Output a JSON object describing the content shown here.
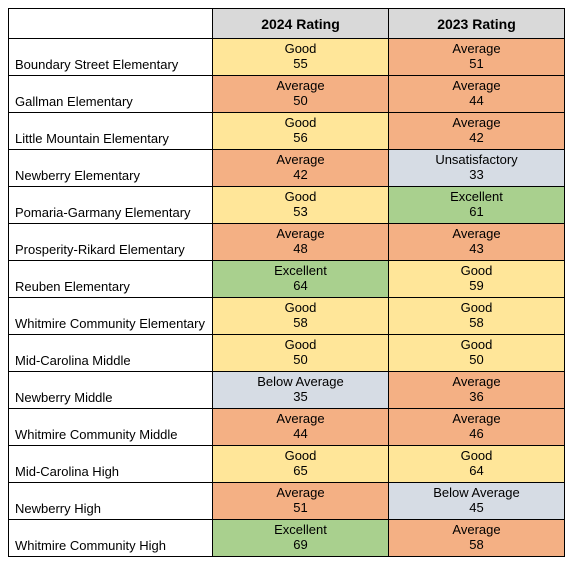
{
  "colors": {
    "header_bg": "#d9d9d9",
    "white": "#ffffff",
    "border": "#000000",
    "Excellent": "#a9d08e",
    "Good": "#ffe699",
    "Average": "#f4b084",
    "Below Average": "#d6dce4",
    "Unsatisfactory": "#d6dce4"
  },
  "headers": {
    "col2024": "2024 Rating",
    "col2023": "2023 Rating"
  },
  "rows": [
    {
      "school": "Boundary Street Elementary",
      "r2024": {
        "label": "Good",
        "score": 55
      },
      "r2023": {
        "label": "Average",
        "score": 51
      }
    },
    {
      "school": "Gallman Elementary",
      "r2024": {
        "label": "Average",
        "score": 50
      },
      "r2023": {
        "label": "Average",
        "score": 44
      }
    },
    {
      "school": "Little Mountain Elementary",
      "r2024": {
        "label": "Good",
        "score": 56
      },
      "r2023": {
        "label": "Average",
        "score": 42
      }
    },
    {
      "school": "Newberry Elementary",
      "r2024": {
        "label": "Average",
        "score": 42
      },
      "r2023": {
        "label": "Unsatisfactory",
        "score": 33
      }
    },
    {
      "school": "Pomaria-Garmany Elementary",
      "r2024": {
        "label": "Good",
        "score": 53
      },
      "r2023": {
        "label": "Excellent",
        "score": 61
      }
    },
    {
      "school": "Prosperity-Rikard Elementary",
      "r2024": {
        "label": "Average",
        "score": 48
      },
      "r2023": {
        "label": "Average",
        "score": 43
      }
    },
    {
      "school": "Reuben Elementary",
      "r2024": {
        "label": "Excellent",
        "score": 64
      },
      "r2023": {
        "label": "Good",
        "score": 59
      }
    },
    {
      "school": "Whitmire Community Elementary",
      "r2024": {
        "label": "Good",
        "score": 58
      },
      "r2023": {
        "label": "Good",
        "score": 58
      }
    },
    {
      "school": "Mid-Carolina Middle",
      "r2024": {
        "label": "Good",
        "score": 50
      },
      "r2023": {
        "label": "Good",
        "score": 50
      }
    },
    {
      "school": "Newberry Middle",
      "r2024": {
        "label": "Below Average",
        "score": 35
      },
      "r2023": {
        "label": "Average",
        "score": 36
      }
    },
    {
      "school": "Whitmire Community Middle",
      "r2024": {
        "label": "Average",
        "score": 44
      },
      "r2023": {
        "label": "Average",
        "score": 46
      }
    },
    {
      "school": "Mid-Carolina High",
      "r2024": {
        "label": "Good",
        "score": 65
      },
      "r2023": {
        "label": "Good",
        "score": 64
      }
    },
    {
      "school": "Newberry High",
      "r2024": {
        "label": "Average",
        "score": 51
      },
      "r2023": {
        "label": "Below Average",
        "score": 45
      }
    },
    {
      "school": "Whitmire Community High",
      "r2024": {
        "label": "Excellent",
        "score": 69
      },
      "r2023": {
        "label": "Average",
        "score": 58
      }
    }
  ]
}
